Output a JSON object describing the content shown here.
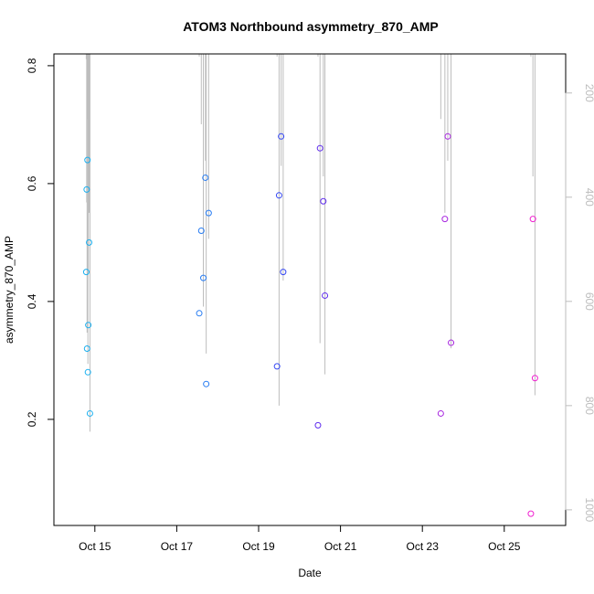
{
  "chart_data": {
    "type": "scatter",
    "title": "ATOM3 Northbound asymmetry_870_AMP",
    "xlabel": "Date",
    "ylabel": "asymmetry_870_AMP",
    "x_ticks": [
      "Oct 15",
      "Oct 17",
      "Oct 19",
      "Oct 21",
      "Oct 23",
      "Oct 25"
    ],
    "y_ticks": [
      "0.2",
      "0.4",
      "0.6",
      "0.8"
    ],
    "y2_ticks": [
      "200",
      "400",
      "600",
      "800",
      "1000"
    ],
    "xlim": [
      "2016-10-14T00:00",
      "2016-10-26T12:00"
    ],
    "ylim": [
      0.02,
      0.82
    ],
    "y2lim": [
      1030,
      125
    ],
    "colors": {
      "start": "#1ab0f0",
      "mid": "#3a2df5",
      "end": "#f020d0",
      "profile": "#bdbdbd"
    },
    "series": [
      {
        "date": "2016-10-14",
        "x": [
          14.79,
          14.8,
          14.81,
          14.82,
          14.83,
          14.84,
          14.86,
          14.88
        ],
        "y": [
          0.45,
          0.59,
          0.32,
          0.64,
          0.28,
          0.36,
          0.5,
          0.21
        ],
        "altitude": [
          135,
          410,
          660,
          250,
          720,
          540,
          430,
          850
        ]
      },
      {
        "date": "2016-10-17",
        "x": [
          17.55,
          17.6,
          17.65,
          17.7,
          17.72,
          17.78
        ],
        "y": [
          0.38,
          0.52,
          0.44,
          0.61,
          0.26,
          0.55
        ],
        "altitude": [
          130,
          260,
          610,
          330,
          700,
          480
        ]
      },
      {
        "date": "2016-10-19",
        "x": [
          19.45,
          19.5,
          19.55,
          19.6
        ],
        "y": [
          0.29,
          0.58,
          0.68,
          0.45
        ],
        "altitude": [
          130,
          800,
          340,
          560
        ]
      },
      {
        "date": "2016-10-20",
        "x": [
          20.45,
          20.5,
          20.58,
          20.62
        ],
        "y": [
          0.19,
          0.66,
          0.57,
          0.41
        ],
        "altitude": [
          130,
          680,
          360,
          740
        ]
      },
      {
        "date": "2016-10-23",
        "x": [
          23.45,
          23.55,
          23.62,
          23.7
        ],
        "y": [
          0.21,
          0.54,
          0.68,
          0.33
        ],
        "altitude": [
          250,
          430,
          330,
          690
        ]
      },
      {
        "date": "2016-10-25",
        "x": [
          25.65,
          25.7,
          25.75
        ],
        "y": [
          0.04,
          0.54,
          0.27
        ],
        "altitude": [
          130,
          360,
          780
        ]
      }
    ]
  }
}
